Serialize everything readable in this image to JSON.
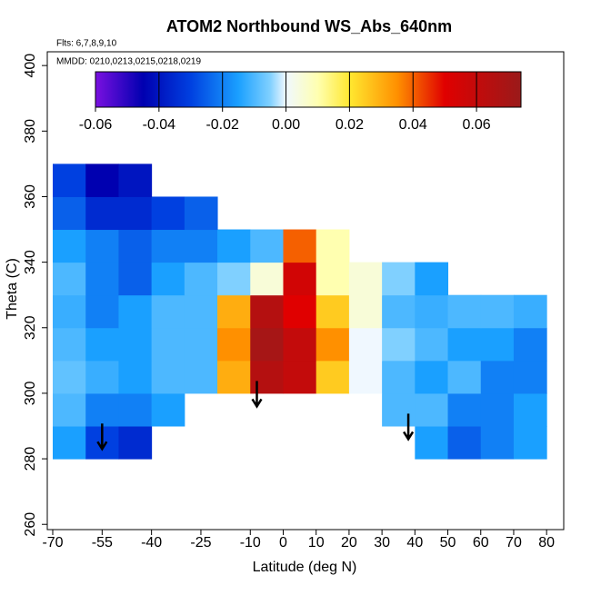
{
  "chart_data": {
    "type": "heatmap",
    "title": "ATOM2 Northbound WS_Abs_640nm",
    "flights_note": "Flts: 6,7,8,9,10",
    "dates_note": "MMDD: 0210,0213,0215,0218,0219",
    "xlabel": "Latitude (deg N)",
    "ylabel": "Theta (C)",
    "xlim": [
      -71.66,
      85.2
    ],
    "ylim": [
      258.4,
      404.2
    ],
    "xticks": [
      -70,
      -55,
      -40,
      -25,
      -10,
      0,
      10,
      20,
      30,
      40,
      50,
      60,
      70,
      80
    ],
    "yticks": [
      260,
      280,
      300,
      320,
      340,
      360,
      380,
      400
    ],
    "x_edges": [
      -70,
      -60,
      -50,
      -40,
      -30,
      -20,
      -10,
      0,
      10,
      20,
      30,
      40,
      50,
      60,
      70,
      80
    ],
    "y_edges": [
      280,
      290,
      300,
      310,
      320,
      330,
      340,
      350,
      360,
      370
    ],
    "values": [
      [
        -0.015,
        -0.03,
        -0.035,
        null,
        null,
        null,
        null,
        null,
        null,
        null,
        null,
        -0.015,
        -0.025,
        -0.02,
        -0.015
      ],
      [
        -0.01,
        -0.02,
        -0.02,
        -0.015,
        null,
        null,
        null,
        null,
        null,
        null,
        -0.01,
        -0.01,
        -0.02,
        -0.02,
        -0.015
      ],
      [
        -0.008,
        -0.012,
        -0.015,
        -0.01,
        -0.01,
        0.03,
        0.065,
        0.06,
        0.025,
        0.0,
        -0.01,
        -0.015,
        -0.01,
        -0.02,
        -0.02
      ],
      [
        -0.01,
        -0.015,
        -0.015,
        -0.01,
        -0.01,
        0.035,
        0.07,
        0.06,
        0.035,
        0.0,
        -0.005,
        -0.01,
        -0.015,
        -0.015,
        -0.02
      ],
      [
        -0.012,
        -0.02,
        -0.015,
        -0.01,
        -0.01,
        0.03,
        0.065,
        0.05,
        0.025,
        0.005,
        -0.01,
        -0.012,
        -0.01,
        -0.01,
        -0.012
      ],
      [
        -0.01,
        -0.02,
        -0.025,
        -0.015,
        -0.01,
        -0.005,
        0.005,
        0.055,
        0.01,
        0.005,
        -0.005,
        -0.015,
        null,
        null,
        null
      ],
      [
        -0.015,
        -0.02,
        -0.025,
        -0.02,
        -0.02,
        -0.015,
        -0.01,
        0.04,
        0.01,
        null,
        null,
        null,
        null,
        null,
        null
      ],
      [
        -0.025,
        -0.035,
        -0.035,
        -0.03,
        -0.025,
        null,
        null,
        null,
        null,
        null,
        null,
        null,
        null,
        null,
        null
      ],
      [
        -0.03,
        -0.045,
        -0.04,
        null,
        null,
        null,
        null,
        null,
        null,
        null,
        null,
        null,
        null,
        null,
        null
      ]
    ],
    "arrows": {
      "x": [
        -55,
        -8,
        38
      ],
      "y": [
        283,
        296,
        286
      ]
    },
    "colorbar_lim": [
      -0.06,
      0.074
    ],
    "colorbar_ticks": [
      {
        "value": -0.06,
        "label": "-0.06"
      },
      {
        "value": -0.04,
        "label": "-0.04"
      },
      {
        "value": -0.02,
        "label": "-0.02"
      },
      {
        "value": 0,
        "label": "0.00"
      },
      {
        "value": 0.02,
        "label": "0.02"
      },
      {
        "value": 0.04,
        "label": "0.04"
      },
      {
        "value": 0.06,
        "label": "0.06"
      }
    ],
    "colormap": [
      {
        "value": -0.06,
        "color": "#7a10e0"
      },
      {
        "value": -0.045,
        "color": "#0000b0"
      },
      {
        "value": -0.03,
        "color": "#0040e0"
      },
      {
        "value": -0.015,
        "color": "#1aa0ff"
      },
      {
        "value": -0.005,
        "color": "#80d0ff"
      },
      {
        "value": 0.0,
        "color": "#f0f8ff"
      },
      {
        "value": 0.01,
        "color": "#ffffb0"
      },
      {
        "value": 0.02,
        "color": "#ffe830"
      },
      {
        "value": 0.035,
        "color": "#ff9000"
      },
      {
        "value": 0.05,
        "color": "#e00000"
      },
      {
        "value": 0.074,
        "color": "#9a1a1a"
      }
    ]
  }
}
